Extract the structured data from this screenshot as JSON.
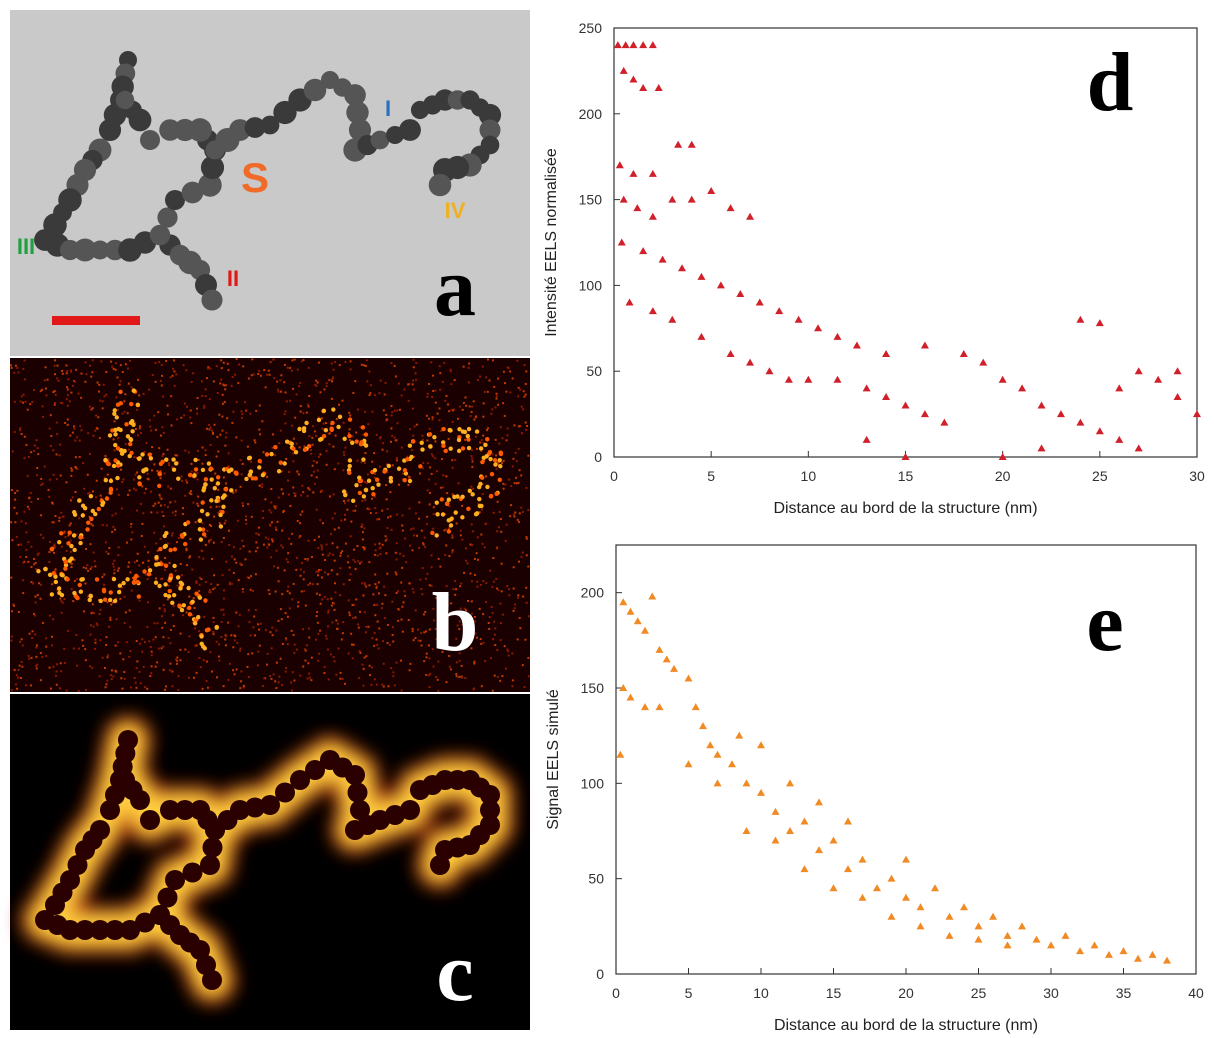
{
  "panels": {
    "a": {
      "label": "a",
      "markers": [
        "S",
        "I",
        "II",
        "III",
        "IV"
      ]
    },
    "b": {
      "label": "b"
    },
    "c": {
      "label": "c"
    }
  },
  "chart_data": [
    {
      "type": "scatter",
      "annotation": "d",
      "x_label": "Distance au bord de la structure (nm)",
      "y_label": "Intensité EELS normalisée",
      "color": "#d0202a",
      "marker": "triangle",
      "x": [
        0.2,
        0.6,
        1,
        1.5,
        2,
        0.5,
        1,
        1.5,
        2.3,
        0.3,
        1,
        2,
        3.3,
        4,
        0.5,
        1.2,
        2,
        3,
        4,
        5,
        6,
        7,
        0.4,
        1.5,
        2.5,
        3.5,
        4.5,
        5.5,
        6.5,
        7.5,
        8.5,
        9.5,
        10.5,
        11.5,
        12.5,
        0.8,
        2,
        3,
        4.5,
        6,
        7,
        8,
        9,
        10,
        11.5,
        13,
        14,
        15,
        16,
        17,
        14,
        16,
        18,
        19,
        20,
        21,
        22,
        23,
        24,
        25,
        26,
        27,
        28,
        29,
        30,
        20,
        22,
        24,
        25,
        26,
        27,
        29,
        13,
        15
      ],
      "values": [
        240,
        240,
        240,
        240,
        240,
        225,
        220,
        215,
        215,
        170,
        165,
        165,
        182,
        182,
        150,
        145,
        140,
        150,
        150,
        155,
        145,
        140,
        125,
        120,
        115,
        110,
        105,
        100,
        95,
        90,
        85,
        80,
        75,
        70,
        65,
        90,
        85,
        80,
        70,
        60,
        55,
        50,
        45,
        45,
        45,
        40,
        35,
        30,
        25,
        20,
        60,
        65,
        60,
        55,
        45,
        40,
        30,
        25,
        20,
        15,
        10,
        5,
        45,
        35,
        25,
        0,
        5,
        80,
        78,
        40,
        50,
        50,
        10,
        0
      ],
      "xlim": [
        0,
        30
      ],
      "ylim": [
        0,
        250
      ],
      "xticks": [
        0,
        5,
        10,
        15,
        20,
        25,
        30
      ],
      "yticks": [
        0,
        50,
        100,
        150,
        200,
        250
      ]
    },
    {
      "type": "scatter",
      "annotation": "e",
      "x_label": "Distance au bord de la structure (nm)",
      "y_label": "Signal EELS simulé",
      "color": "#f08a24",
      "marker": "triangle",
      "x": [
        0.5,
        1,
        1.5,
        2,
        2.5,
        3,
        3.5,
        4,
        0.5,
        1,
        2,
        0.3,
        5,
        5.5,
        6,
        6.5,
        7,
        8,
        8.5,
        9,
        10,
        10,
        11,
        12,
        12,
        13,
        14,
        14,
        15,
        16,
        16,
        17,
        18,
        19,
        20,
        20,
        21,
        22,
        23,
        24,
        25,
        26,
        27,
        28,
        29,
        30,
        31,
        32,
        33,
        34,
        35,
        36,
        37,
        38,
        3,
        5,
        7,
        9,
        11,
        13,
        15,
        17,
        19,
        21,
        23,
        25,
        27
      ],
      "values": [
        195,
        190,
        185,
        180,
        198,
        170,
        165,
        160,
        150,
        145,
        140,
        115,
        155,
        140,
        130,
        120,
        115,
        110,
        125,
        100,
        95,
        120,
        85,
        100,
        75,
        80,
        90,
        65,
        70,
        55,
        80,
        60,
        45,
        50,
        40,
        60,
        35,
        45,
        30,
        35,
        25,
        30,
        20,
        25,
        18,
        15,
        20,
        12,
        15,
        10,
        12,
        8,
        10,
        7,
        140,
        110,
        100,
        75,
        70,
        55,
        45,
        40,
        30,
        25,
        20,
        18,
        15
      ],
      "xlim": [
        0,
        40
      ],
      "ylim": [
        0,
        225
      ],
      "xticks": [
        0,
        5,
        10,
        15,
        20,
        25,
        30,
        35,
        40
      ],
      "yticks": [
        0,
        50,
        100,
        150,
        200
      ]
    }
  ]
}
